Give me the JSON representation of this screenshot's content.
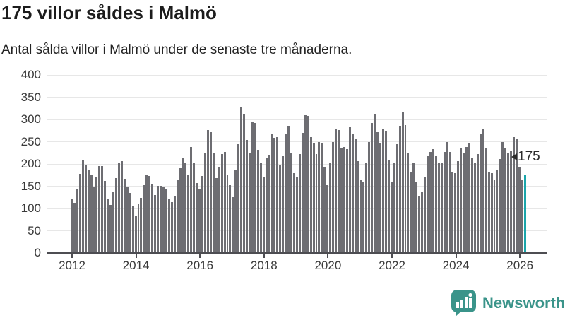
{
  "header": {
    "title": "175 villor såldes i Malmö",
    "subtitle": "Antal sålda villor i Malmö under de senaste tre månaderna."
  },
  "annotation": {
    "latest_value_label": "175"
  },
  "branding": {
    "name": "Newsworthy",
    "icon": "bar-chart-speech-bubble-icon",
    "brand_color": "#3a948a"
  },
  "colors": {
    "bar": "#6d6d72",
    "highlight_bar": "#1aa6ab",
    "axis": "#4d4d52",
    "grid": "#e7e7e7",
    "text": "#3a3a3a",
    "title_text": "#1c1c1c"
  },
  "chart_data": {
    "type": "bar",
    "title": "175 villor såldes i Malmö",
    "subtitle": "Antal sålda villor i Malmö under de senaste tre månaderna.",
    "xlabel": "",
    "ylabel": "",
    "x_range": [
      "2012",
      "2026"
    ],
    "x_tick_labels": [
      "2012",
      "2014",
      "2016",
      "2018",
      "2020",
      "2022",
      "2024",
      "2026"
    ],
    "y_ticks": [
      0,
      50,
      100,
      150,
      200,
      250,
      300,
      350,
      400
    ],
    "ylim": [
      0,
      400
    ],
    "grid": true,
    "legend": false,
    "series": [
      {
        "name": "Antal sålda villor",
        "values": [
          122,
          112,
          144,
          178,
          210,
          198,
          187,
          177,
          150,
          172,
          195,
          196,
          162,
          121,
          108,
          138,
          169,
          203,
          207,
          166,
          147,
          135,
          106,
          82,
          111,
          124,
          152,
          177,
          173,
          154,
          130,
          151,
          151,
          147,
          143,
          120,
          114,
          129,
          164,
          191,
          212,
          201,
          177,
          238,
          203,
          157,
          143,
          173,
          224,
          276,
          271,
          224,
          169,
          192,
          222,
          227,
          177,
          152,
          126,
          188,
          245,
          327,
          312,
          254,
          224,
          296,
          292,
          231,
          201,
          172,
          214,
          219,
          268,
          259,
          260,
          197,
          217,
          267,
          285,
          225,
          179,
          170,
          222,
          270,
          310,
          308,
          260,
          246,
          222,
          249,
          246,
          194,
          152,
          201,
          250,
          280,
          276,
          235,
          238,
          234,
          283,
          267,
          256,
          207,
          163,
          159,
          203,
          249,
          292,
          312,
          271,
          247,
          280,
          273,
          209,
          161,
          201,
          244,
          284,
          317,
          288,
          224,
          182,
          201,
          159,
          129,
          136,
          172,
          217,
          227,
          233,
          217,
          203,
          203,
          227,
          250,
          227,
          182,
          180,
          206,
          235,
          225,
          238,
          246,
          214,
          203,
          222,
          267,
          280,
          235,
          182,
          180,
          164,
          188,
          211,
          250,
          236,
          225,
          230,
          261,
          255,
          193,
          164,
          175
        ]
      }
    ],
    "highlight_last_value": 175,
    "annotation_label": "175"
  }
}
